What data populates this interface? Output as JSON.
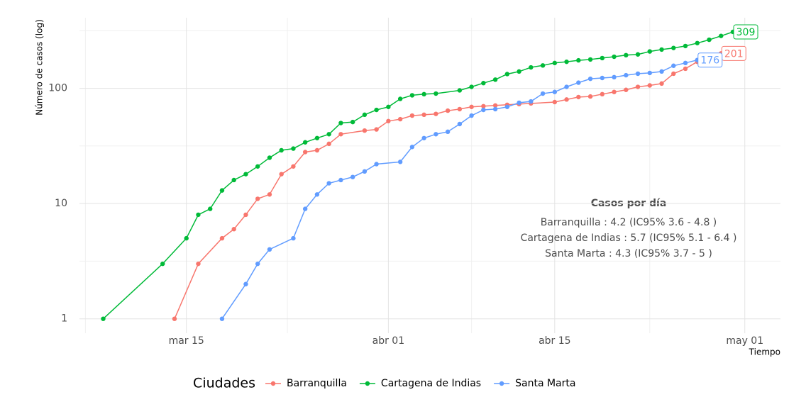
{
  "chart_data": {
    "type": "line",
    "ylabel": "Número de casos (log)",
    "xlabel": "Tiempo",
    "log_y": true,
    "grid": true,
    "legend": {
      "title": "Ciudades",
      "position": "bottom"
    },
    "xlim": [
      "03-06",
      "05-04"
    ],
    "xticks": [
      {
        "value": "03-15",
        "label": "mar 15"
      },
      {
        "value": "04-01",
        "label": "abr 01"
      },
      {
        "value": "04-15",
        "label": "abr 15"
      },
      {
        "value": "05-01",
        "label": "may 01"
      }
    ],
    "ylim": [
      0.75,
      410
    ],
    "yticks": [
      1,
      10,
      100
    ],
    "annotation": {
      "title": "Casos por día",
      "lines": [
        "Barranquilla : 4.2 (IC95% 3.6 - 4.8 )",
        "Cartagena de Indias : 5.7 (IC95% 5.1 - 6.4 )",
        "Santa Marta : 4.3 (IC95% 3.7 - 5 )"
      ]
    },
    "series": [
      {
        "name": "Barranquilla",
        "color": "#F8766D",
        "x": [
          "03-14",
          "03-16",
          "03-18",
          "03-19",
          "03-20",
          "03-21",
          "03-22",
          "03-23",
          "03-24",
          "03-25",
          "03-26",
          "03-27",
          "03-28",
          "03-30",
          "03-31",
          "04-01",
          "04-02",
          "04-03",
          "04-04",
          "04-05",
          "04-06",
          "04-07",
          "04-08",
          "04-09",
          "04-10",
          "04-11",
          "04-12",
          "04-13",
          "04-15",
          "04-16",
          "04-17",
          "04-18",
          "04-19",
          "04-20",
          "04-21",
          "04-22",
          "04-23",
          "04-24",
          "04-25",
          "04-26",
          "04-27",
          "04-28",
          "04-29"
        ],
        "values": [
          1,
          3,
          5,
          6,
          8,
          11,
          12,
          18,
          21,
          28,
          29,
          33,
          40,
          43,
          44,
          52,
          54,
          58,
          59,
          60,
          64,
          66,
          69,
          70,
          71,
          72,
          73,
          74,
          76,
          80,
          84,
          85,
          89,
          93,
          97,
          103,
          106,
          110,
          134,
          148,
          170,
          190,
          201
        ]
      },
      {
        "name": "Cartagena de Indias",
        "color": "#00BA38",
        "x": [
          "03-08",
          "03-13",
          "03-15",
          "03-16",
          "03-17",
          "03-18",
          "03-19",
          "03-20",
          "03-21",
          "03-22",
          "03-23",
          "03-24",
          "03-25",
          "03-26",
          "03-27",
          "03-28",
          "03-29",
          "03-30",
          "03-31",
          "04-01",
          "04-02",
          "04-03",
          "04-04",
          "04-05",
          "04-07",
          "04-08",
          "04-09",
          "04-10",
          "04-11",
          "04-12",
          "04-13",
          "04-14",
          "04-15",
          "04-16",
          "04-17",
          "04-18",
          "04-19",
          "04-20",
          "04-21",
          "04-22",
          "04-23",
          "04-24",
          "04-25",
          "04-26",
          "04-27",
          "04-28",
          "04-29",
          "04-30"
        ],
        "values": [
          1,
          3,
          5,
          8,
          9,
          13,
          16,
          18,
          21,
          25,
          29,
          30,
          34,
          37,
          40,
          50,
          51,
          59,
          65,
          69,
          81,
          87,
          89,
          90,
          96,
          103,
          111,
          119,
          133,
          140,
          152,
          158,
          166,
          170,
          175,
          178,
          183,
          188,
          194,
          197,
          209,
          217,
          224,
          233,
          247,
          264,
          285,
          309
        ]
      },
      {
        "name": "Santa Marta",
        "color": "#619CFF",
        "x": [
          "03-18",
          "03-20",
          "03-21",
          "03-22",
          "03-24",
          "03-25",
          "03-26",
          "03-27",
          "03-28",
          "03-29",
          "03-30",
          "03-31",
          "04-02",
          "04-03",
          "04-04",
          "04-05",
          "04-06",
          "04-07",
          "04-08",
          "04-09",
          "04-10",
          "04-11",
          "04-12",
          "04-13",
          "04-14",
          "04-15",
          "04-16",
          "04-17",
          "04-18",
          "04-19",
          "04-20",
          "04-21",
          "04-22",
          "04-23",
          "04-24",
          "04-25",
          "04-26",
          "04-27"
        ],
        "values": [
          1,
          2,
          3,
          4,
          5,
          9,
          12,
          15,
          16,
          17,
          19,
          22,
          23,
          31,
          37,
          40,
          42,
          49,
          58,
          65,
          66,
          69,
          75,
          77,
          90,
          93,
          103,
          112,
          121,
          123,
          125,
          130,
          134,
          136,
          140,
          157,
          166,
          176
        ]
      }
    ]
  }
}
